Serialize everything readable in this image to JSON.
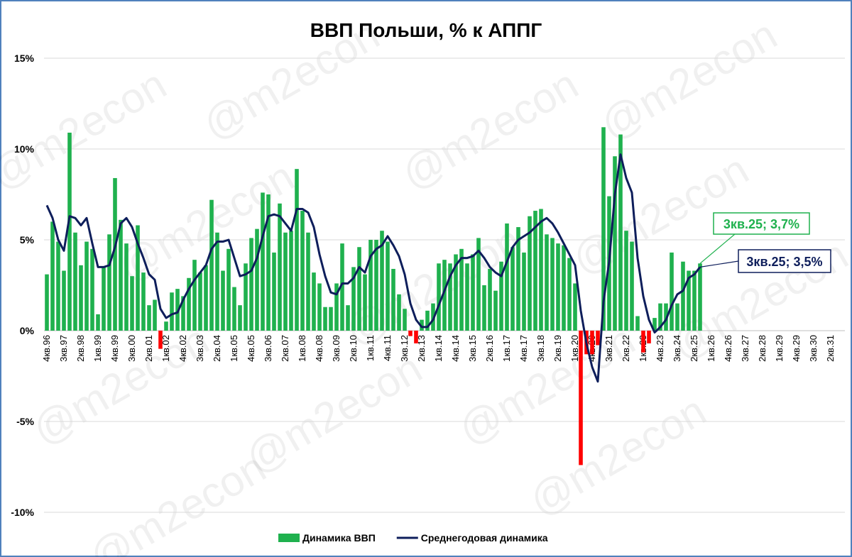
{
  "chart_data": {
    "type": "bar_line",
    "title": "ВВП Польши, % к АППГ",
    "watermark": "@m2econ",
    "categories": [
      "4кв.96",
      null,
      null,
      "3кв.97",
      null,
      null,
      "2кв.98",
      null,
      null,
      "1кв.99",
      null,
      null,
      "4кв.99",
      null,
      null,
      "3кв.00",
      null,
      null,
      "2кв.01",
      null,
      null,
      "1кв.02",
      null,
      null,
      "4кв.02",
      null,
      null,
      "3кв.03",
      null,
      null,
      "2кв.04",
      null,
      null,
      "1кв.05",
      null,
      null,
      "4кв.05",
      null,
      null,
      "3кв.06",
      null,
      null,
      "2кв.07",
      null,
      null,
      "1кв.08",
      null,
      null,
      "4кв.08",
      null,
      null,
      "3кв.09",
      null,
      null,
      "2кв.10",
      null,
      null,
      "1кв.11",
      null,
      null,
      "4кв.11",
      null,
      null,
      "3кв.12",
      null,
      null,
      "2кв.13",
      null,
      null,
      "1кв.14",
      null,
      null,
      "4кв.14",
      null,
      null,
      "3кв.15",
      null,
      null,
      "2кв.16",
      null,
      null,
      "1кв.17",
      null,
      null,
      "4кв.17",
      null,
      null,
      "3кв.18",
      null,
      null,
      "2кв.19",
      null,
      null,
      "1кв.20",
      null,
      null,
      "4кв.20",
      null,
      null,
      "3кв.21",
      null,
      null,
      "2кв.22",
      null,
      null,
      "1кв.23",
      null,
      null,
      "4кв.23",
      null,
      null,
      "3кв.24",
      null,
      null,
      "2кв.25",
      null,
      null,
      "1кв.26",
      null,
      null,
      "4кв.26",
      null,
      null,
      "3кв.27",
      null,
      null,
      "2кв.28",
      null,
      null,
      "1кв.29",
      null,
      null,
      "4кв.29",
      null,
      null,
      "3кв.30",
      null,
      null,
      "2кв.31",
      null,
      null
    ],
    "series": [
      {
        "name": "Динамика ВВП",
        "type": "bar",
        "color": "#1fb14e",
        "negative_color": "#ff0000",
        "annotation": "3кв.25; 3,7%",
        "values": [
          3.1,
          6.0,
          4.9,
          3.3,
          10.9,
          5.4,
          3.6,
          4.9,
          4.5,
          0.9,
          3.5,
          5.3,
          8.4,
          6.1,
          4.8,
          3.0,
          5.8,
          3.2,
          1.4,
          1.7,
          -1.0,
          0.5,
          2.1,
          2.3,
          1.9,
          2.9,
          3.9,
          3.2,
          3.6,
          7.2,
          5.4,
          3.3,
          4.5,
          2.4,
          1.4,
          3.7,
          5.1,
          5.6,
          7.6,
          7.5,
          4.3,
          7.0,
          5.4,
          5.5,
          8.9,
          6.6,
          5.4,
          3.2,
          2.6,
          1.3,
          1.3,
          2.6,
          4.8,
          1.4,
          3.5,
          4.6,
          3.1,
          5.0,
          5.0,
          5.5,
          4.9,
          3.4,
          2.0,
          1.2,
          -0.3,
          -0.7,
          0.6,
          1.1,
          1.5,
          3.7,
          3.9,
          3.7,
          4.2,
          4.5,
          3.7,
          4.2,
          5.1,
          2.5,
          3.4,
          2.2,
          3.8,
          5.9,
          4.6,
          5.7,
          4.3,
          6.3,
          6.6,
          6.7,
          5.3,
          5.1,
          4.8,
          4.7,
          4.0,
          2.6,
          -7.4,
          -1.3,
          -1.3,
          -0.8,
          11.2,
          7.4,
          9.6,
          10.8,
          5.5,
          4.9,
          0.8,
          -1.2,
          -0.7,
          0.7,
          1.5,
          1.5,
          4.3,
          1.5,
          3.8,
          3.3,
          3.3,
          3.7,
          null,
          null,
          null,
          null,
          null,
          null,
          null,
          null,
          null,
          null,
          null,
          null,
          null,
          null,
          null,
          null,
          null,
          null,
          null,
          null,
          null,
          null,
          null,
          null,
          null
        ]
      },
      {
        "name": "Среднегодовая динамика",
        "type": "line",
        "color": "#0e1e5b",
        "annotation": "3кв.25; 3,5%",
        "values": [
          6.9,
          6.2,
          5.0,
          4.4,
          6.3,
          6.2,
          5.8,
          6.2,
          4.8,
          3.5,
          3.5,
          3.6,
          4.6,
          5.9,
          6.2,
          5.7,
          4.8,
          4.0,
          3.1,
          2.8,
          1.2,
          0.7,
          0.9,
          1.0,
          1.7,
          2.3,
          2.8,
          3.2,
          3.6,
          4.5,
          4.9,
          4.9,
          5.0,
          4.0,
          3.0,
          3.1,
          3.3,
          4.0,
          5.2,
          6.3,
          6.4,
          6.3,
          5.9,
          5.5,
          6.7,
          6.7,
          6.5,
          5.7,
          4.2,
          3.0,
          2.1,
          2.0,
          2.6,
          2.6,
          2.9,
          3.5,
          3.2,
          4.1,
          4.5,
          4.7,
          5.2,
          4.7,
          4.1,
          3.1,
          1.5,
          0.6,
          0.2,
          0.2,
          0.6,
          1.4,
          2.2,
          3.0,
          3.6,
          4.0,
          4.0,
          4.1,
          4.4,
          4.0,
          3.5,
          3.2,
          3.0,
          3.8,
          4.6,
          5.0,
          5.2,
          5.4,
          5.7,
          6.0,
          6.2,
          5.9,
          5.4,
          4.8,
          4.2,
          3.6,
          1.1,
          -0.7,
          -2.0,
          -2.8,
          1.6,
          3.8,
          7.5,
          9.7,
          8.4,
          7.6,
          4.0,
          1.9,
          0.6,
          -0.1,
          0.2,
          0.6,
          1.4,
          2.0,
          2.2,
          2.9,
          3.1,
          3.5,
          null,
          null,
          null,
          null,
          null,
          null,
          null,
          null,
          null,
          null,
          null,
          null,
          null,
          null,
          null,
          null,
          null,
          null,
          null,
          null,
          null,
          null,
          null,
          null,
          null
        ]
      }
    ],
    "ylim": [
      -10,
      15
    ],
    "yticks": [
      {
        "value": -10,
        "label": "-10%"
      },
      {
        "value": -5,
        "label": "-5%"
      },
      {
        "value": 0,
        "label": "0%"
      },
      {
        "value": 5,
        "label": "5%"
      },
      {
        "value": 10,
        "label": "10%"
      },
      {
        "value": 15,
        "label": "15%"
      }
    ],
    "grid": true
  }
}
